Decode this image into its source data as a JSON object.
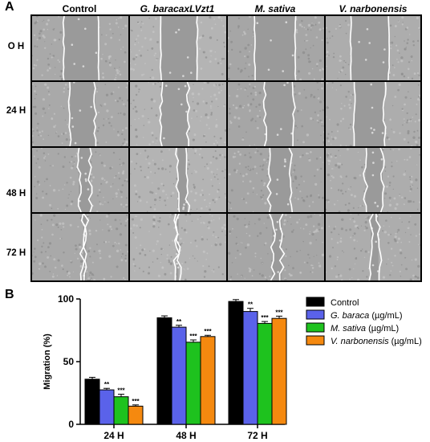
{
  "panel_a": {
    "letter": "A",
    "columns": [
      {
        "label": "Control",
        "italic": false
      },
      {
        "label": "G. baracaxLVzt1",
        "italic": true
      },
      {
        "label": "M. sativa",
        "italic": true
      },
      {
        "label": "V. narbonensis",
        "italic": true
      }
    ],
    "rows": [
      "O H",
      "24 H",
      "48 H",
      "72 H"
    ],
    "gap_widths": [
      [
        0.36,
        0.38,
        0.42,
        0.4
      ],
      [
        0.26,
        0.28,
        0.3,
        0.32
      ],
      [
        0.12,
        0.1,
        0.22,
        0.18
      ],
      [
        0.03,
        0.02,
        0.1,
        0.08
      ]
    ]
  },
  "panel_b": {
    "letter": "B"
  },
  "chart_data": {
    "type": "bar",
    "categories": [
      "24 H",
      "48 H",
      "72 H"
    ],
    "ylabel": "Migration (%)",
    "xlabel": "",
    "ylim": [
      0,
      100
    ],
    "yticks": [
      0,
      50,
      100
    ],
    "legend_position": "right",
    "series": [
      {
        "name": "Control",
        "italic": false,
        "unit": "",
        "color": "#000000",
        "values": [
          36,
          85,
          98
        ],
        "errors": [
          1.5,
          1.5,
          1.5
        ],
        "significance": [
          "",
          "",
          ""
        ]
      },
      {
        "name": "G. baraca",
        "italic": true,
        "unit": " (µg/mL)",
        "color": "#5a62ea",
        "values": [
          27.5,
          77.5,
          90
        ],
        "errors": [
          1.2,
          1.5,
          2.5
        ],
        "significance": [
          "**",
          "**",
          "**"
        ]
      },
      {
        "name": "M. sativa",
        "italic": true,
        "unit": " (µg/mL)",
        "color": "#1ec21e",
        "values": [
          22,
          65.5,
          80.5
        ],
        "errors": [
          2.0,
          1.8,
          1.5
        ],
        "significance": [
          "***",
          "***",
          "***"
        ]
      },
      {
        "name": "V. narbonensis",
        "italic": true,
        "unit": " (µg/mL)",
        "color": "#f5890f",
        "values": [
          14.5,
          70,
          84.5
        ],
        "errors": [
          1.0,
          1.0,
          1.8
        ],
        "significance": [
          "***",
          "***",
          "***"
        ]
      }
    ]
  }
}
